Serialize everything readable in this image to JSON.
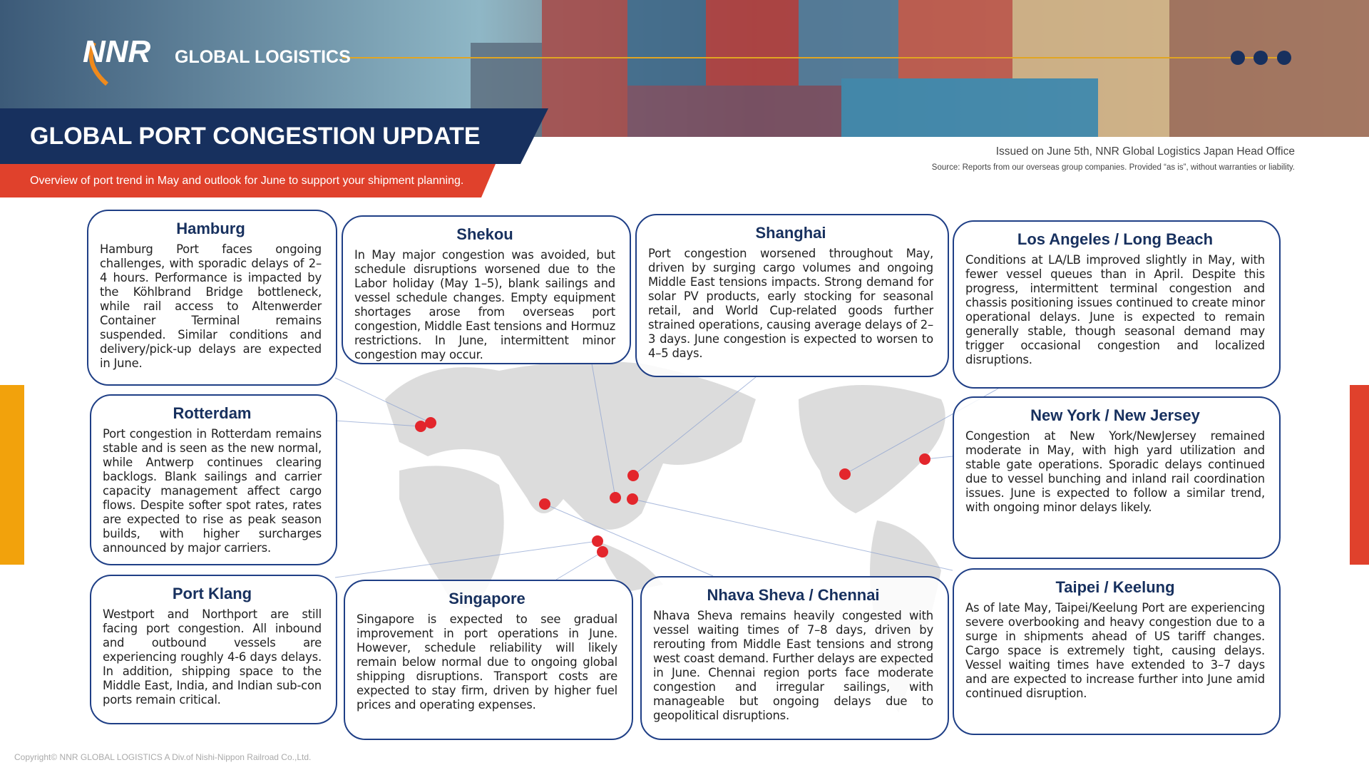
{
  "header": {
    "brand": "NNR",
    "tagline": "GLOBAL LOGISTICS",
    "title": "GLOBAL PORT CONGESTION UPDATE",
    "subtitle": "Overview of port trend in May and outlook for June to support your shipment planning.",
    "issued": "Issued on June 5th, NNR Global Logistics Japan Head Office",
    "source": "Source: Reports from our overseas group companies. Provided “as is”, without warranties or liability."
  },
  "ports": [
    {
      "name": "Hamburg",
      "text": "Hamburg Port faces ongoing challenges, with sporadic delays of 2–4 hours. Performance is impacted by the Köhlbrand Bridge bottleneck, while rail access to Altenwerder Container Terminal remains suspended. Similar conditions and delivery/pick-up delays are expected in June."
    },
    {
      "name": "Shekou",
      "text": "In May major congestion was avoided, but schedule disruptions worsened due to the Labor holiday (May 1–5), blank sailings and vessel schedule changes. Empty equipment shortages arose from overseas port congestion, Middle East tensions and Hormuz restrictions. In June, intermittent minor congestion may occur."
    },
    {
      "name": "Shanghai",
      "text": "Port congestion worsened throughout May, driven by surging cargo volumes and ongoing Middle East tensions impacts. Strong demand for solar PV products, early stocking for seasonal retail, and World Cup-related goods further strained operations, causing average delays of 2–3 days. June congestion is expected to worsen to 4–5 days."
    },
    {
      "name": "Los Angeles / Long Beach",
      "text": "Conditions at LA/LB improved slightly in May, with fewer vessel queues than in April. Despite this progress, intermittent terminal congestion and chassis positioning issues continued to create minor operational delays. June is expected to remain generally stable, though seasonal demand may trigger occasional congestion and localized disruptions."
    },
    {
      "name": "Rotterdam",
      "text": "Port congestion in Rotterdam remains stable and is seen as the new normal, while Antwerp continues clearing backlogs. Blank sailings and carrier capacity management affect cargo flows. Despite softer spot rates, rates are expected to rise as peak season builds, with higher surcharges announced by major carriers."
    },
    {
      "name": "New York / New Jersey",
      "text": "Congestion at New York/NewJersey remained moderate in May, with high yard utilization and stable gate operations. Sporadic delays continued due to vessel bunching and inland rail coordination issues. June is expected to follow a similar trend, with ongoing minor delays likely."
    },
    {
      "name": "Port Klang",
      "text": "Westport and Northport are still facing port congestion. All inbound and outbound vessels are experiencing roughly 4-6 days delays. In addition, shipping space to the Middle East, India, and Indian sub-con ports remain critical."
    },
    {
      "name": "Singapore",
      "text": "Singapore is expected to see gradual improvement in port operations in June. However, schedule reliability will likely remain below normal due to ongoing global shipping disruptions. Transport costs are expected to stay firm, driven by higher fuel prices and operating expenses."
    },
    {
      "name": "Nhava Sheva / Chennai",
      "text": "Nhava Sheva remains heavily congested with vessel waiting times of 7–8 days, driven by rerouting from Middle East tensions and strong west coast demand. Further delays are expected in June. Chennai region ports face moderate congestion and irregular sailings, with manageable but ongoing delays due to geopolitical disruptions."
    },
    {
      "name": "Taipei / Keelung",
      "text": "As of late May, Taipei/Keelung Port are experiencing severe overbooking and heavy congestion due to a surge in shipments ahead of US tariff changes. Cargo space is extremely tight, causing delays. Vessel waiting times have extended to 3–7 days and are expected to increase further into June amid continued disruption."
    }
  ],
  "footer": {
    "copyright": "Copyright© NNR GLOBAL LOGISTICS A Div.of Nishi-Nippon Railroad Co.,Ltd."
  }
}
